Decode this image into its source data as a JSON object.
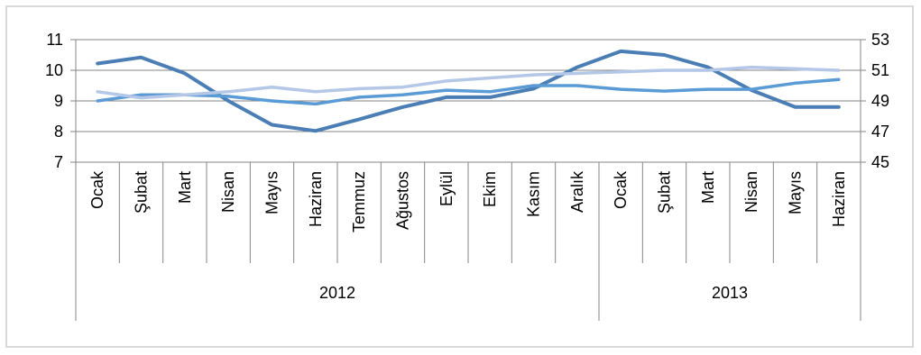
{
  "chart_data": {
    "type": "line",
    "categories": [
      "Ocak",
      "Şubat",
      "Mart",
      "Nisan",
      "Mayıs",
      "Haziran",
      "Temmuz",
      "Ağustos",
      "Eylül",
      "Ekim",
      "Kasım",
      "Aralık",
      "Ocak",
      "Şubat",
      "Mart",
      "Nisan",
      "Mayıs",
      "Haziran"
    ],
    "groups": [
      {
        "label": "2012",
        "start": 0,
        "end": 11
      },
      {
        "label": "2013",
        "start": 12,
        "end": 17
      }
    ],
    "y_left": {
      "min": 7,
      "max": 11,
      "ticks": [
        7,
        8,
        9,
        10,
        11
      ]
    },
    "y_right": {
      "min": 45,
      "max": 53,
      "ticks": [
        45,
        47,
        49,
        51,
        53
      ]
    },
    "grid": true,
    "legend": "none",
    "series": [
      {
        "axis": "left",
        "color": "#4a7eb5",
        "width": 4,
        "values": [
          10.22,
          10.42,
          9.9,
          9.0,
          8.22,
          8.02,
          8.4,
          8.8,
          9.12,
          9.12,
          9.4,
          10.1,
          10.62,
          10.5,
          10.1,
          9.35,
          8.8,
          8.8
        ]
      },
      {
        "axis": "left",
        "color": "#5b9bd5",
        "width": 3.5,
        "values": [
          9.0,
          9.2,
          9.2,
          9.15,
          9.0,
          8.9,
          9.12,
          9.2,
          9.35,
          9.3,
          9.5,
          9.5,
          9.38,
          9.32,
          9.38,
          9.38,
          9.58,
          9.7
        ]
      },
      {
        "axis": "right",
        "color": "#b4c7e7",
        "width": 3.5,
        "values": [
          49.6,
          49.2,
          49.4,
          49.6,
          49.9,
          49.6,
          49.8,
          49.9,
          50.3,
          50.5,
          50.7,
          50.8,
          50.9,
          51.0,
          51.0,
          51.2,
          51.1,
          51.0
        ]
      }
    ]
  }
}
